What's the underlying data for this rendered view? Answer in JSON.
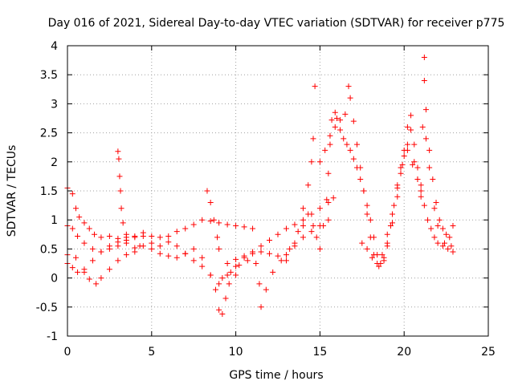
{
  "chart_data": {
    "type": "scatter",
    "title": "Day 016 of 2021, Sidereal Day-to-day VTEC variation (SDTVAR) for receiver p775",
    "xlabel": "GPS time / hours",
    "ylabel": "SDTVAR / TECUs",
    "xlim": [
      0,
      25
    ],
    "ylim": [
      -1,
      4
    ],
    "xticks": [
      0,
      5,
      10,
      15,
      20,
      25
    ],
    "yticks": [
      -1,
      -0.5,
      0,
      0.5,
      1,
      1.5,
      2,
      2.5,
      3,
      3.5,
      4
    ],
    "ytick_labels": [
      "-1",
      "-0.5",
      "0",
      "0.5",
      "1",
      "1.5",
      "2",
      "2.5",
      "3",
      "3.5",
      "4"
    ],
    "grid": true,
    "marker": "+",
    "series": [
      {
        "name": "p775",
        "color": "#ff0000",
        "tracks": [
          [
            [
              0.0,
              1.55
            ],
            [
              0.3,
              1.45
            ],
            [
              0.5,
              1.2
            ],
            [
              0.7,
              1.05
            ],
            [
              1.0,
              0.95
            ],
            [
              1.3,
              0.85
            ],
            [
              1.6,
              0.75
            ],
            [
              2.0,
              0.7
            ],
            [
              2.5,
              0.72
            ],
            [
              3.0,
              0.68
            ],
            [
              3.5,
              0.7
            ],
            [
              4.0,
              0.72
            ],
            [
              4.5,
              0.78
            ],
            [
              5.0,
              0.6
            ],
            [
              5.5,
              0.55
            ],
            [
              6.0,
              0.72
            ],
            [
              6.5,
              0.8
            ],
            [
              7.0,
              0.85
            ],
            [
              7.5,
              0.92
            ],
            [
              8.0,
              1.0
            ],
            [
              8.5,
              0.98
            ],
            [
              9.0,
              0.95
            ],
            [
              9.5,
              0.92
            ],
            [
              10.0,
              0.9
            ],
            [
              10.5,
              0.88
            ],
            [
              11.0,
              0.85
            ]
          ],
          [
            [
              0.0,
              0.9
            ],
            [
              0.3,
              0.85
            ],
            [
              0.6,
              0.72
            ],
            [
              1.0,
              0.6
            ],
            [
              1.5,
              0.5
            ],
            [
              2.0,
              0.45
            ],
            [
              2.5,
              0.5
            ],
            [
              3.0,
              0.55
            ],
            [
              3.5,
              0.6
            ],
            [
              4.0,
              0.52
            ],
            [
              4.5,
              0.55
            ],
            [
              5.0,
              0.5
            ],
            [
              5.5,
              0.42
            ],
            [
              6.0,
              0.38
            ],
            [
              6.5,
              0.35
            ],
            [
              7.0,
              0.42
            ],
            [
              7.5,
              0.5
            ],
            [
              8.0,
              0.35
            ]
          ],
          [
            [
              0.0,
              0.25
            ],
            [
              0.3,
              0.18
            ],
            [
              0.6,
              0.1
            ],
            [
              1.0,
              0.15
            ],
            [
              1.5,
              0.3
            ],
            [
              2.0,
              0.45
            ],
            [
              2.5,
              0.55
            ],
            [
              3.0,
              0.62
            ],
            [
              3.5,
              0.65
            ],
            [
              4.0,
              0.7
            ],
            [
              4.5,
              0.72
            ],
            [
              5.0,
              0.72
            ],
            [
              5.5,
              0.7
            ],
            [
              6.0,
              0.62
            ],
            [
              6.5,
              0.55
            ],
            [
              7.0,
              0.42
            ],
            [
              7.5,
              0.3
            ],
            [
              8.0,
              0.2
            ],
            [
              8.5,
              0.05
            ],
            [
              8.8,
              -0.2
            ],
            [
              9.0,
              -0.55
            ],
            [
              9.2,
              -0.62
            ],
            [
              9.4,
              -0.35
            ],
            [
              9.6,
              -0.1
            ],
            [
              10.0,
              0.05
            ]
          ],
          [
            [
              0.0,
              0.4
            ],
            [
              0.5,
              0.35
            ],
            [
              1.0,
              0.1
            ],
            [
              1.3,
              -0.02
            ],
            [
              1.7,
              -0.1
            ],
            [
              2.0,
              0.0
            ],
            [
              2.5,
              0.15
            ],
            [
              3.0,
              0.3
            ],
            [
              3.5,
              0.4
            ],
            [
              4.0,
              0.45
            ],
            [
              4.3,
              0.55
            ]
          ],
          [
            [
              3.0,
              2.18
            ],
            [
              3.05,
              2.05
            ],
            [
              3.1,
              1.75
            ],
            [
              3.15,
              1.5
            ],
            [
              3.2,
              1.2
            ],
            [
              3.3,
              0.95
            ],
            [
              3.5,
              0.75
            ]
          ],
          [
            [
              8.3,
              1.5
            ],
            [
              8.5,
              1.3
            ],
            [
              8.7,
              1.0
            ],
            [
              8.9,
              0.7
            ],
            [
              9.0,
              0.5
            ]
          ],
          [
            [
              8.5,
              0.05
            ],
            [
              9.0,
              -0.1
            ],
            [
              9.5,
              0.05
            ],
            [
              10.0,
              0.2
            ],
            [
              10.5,
              0.35
            ],
            [
              11.0,
              0.45
            ],
            [
              11.5,
              0.55
            ],
            [
              12.0,
              0.65
            ],
            [
              12.5,
              0.75
            ],
            [
              13.0,
              0.85
            ],
            [
              13.5,
              0.92
            ],
            [
              14.0,
              1.0
            ],
            [
              14.5,
              1.1
            ],
            [
              15.0,
              1.2
            ],
            [
              15.5,
              1.3
            ],
            [
              15.8,
              1.38
            ]
          ],
          [
            [
              9.5,
              0.25
            ],
            [
              10.0,
              0.32
            ],
            [
              10.5,
              0.38
            ],
            [
              11.0,
              0.42
            ],
            [
              11.5,
              0.45
            ],
            [
              12.0,
              0.42
            ],
            [
              12.5,
              0.38
            ],
            [
              13.0,
              0.4
            ],
            [
              13.5,
              0.55
            ],
            [
              14.0,
              0.7
            ],
            [
              14.5,
              0.8
            ],
            [
              15.0,
              0.9
            ],
            [
              15.5,
              1.0
            ]
          ],
          [
            [
              9.2,
              0.0
            ],
            [
              9.7,
              0.1
            ],
            [
              10.2,
              0.22
            ],
            [
              10.7,
              0.3
            ],
            [
              11.2,
              0.25
            ],
            [
              11.4,
              -0.1
            ],
            [
              11.5,
              -0.5
            ],
            [
              11.8,
              -0.2
            ],
            [
              12.2,
              0.1
            ],
            [
              12.7,
              0.3
            ],
            [
              13.2,
              0.5
            ],
            [
              13.7,
              0.8
            ],
            [
              14.0,
              1.2
            ],
            [
              14.3,
              1.6
            ],
            [
              14.5,
              2.0
            ],
            [
              14.6,
              2.4
            ],
            [
              14.7,
              3.3
            ]
          ],
          [
            [
              13.0,
              0.3
            ],
            [
              13.5,
              0.6
            ],
            [
              14.0,
              0.9
            ],
            [
              14.3,
              1.1
            ],
            [
              14.6,
              0.9
            ],
            [
              14.8,
              0.7
            ],
            [
              15.0,
              0.5
            ],
            [
              15.2,
              0.9
            ],
            [
              15.4,
              1.35
            ],
            [
              15.5,
              1.8
            ],
            [
              15.6,
              2.3
            ],
            [
              15.7,
              2.72
            ],
            [
              15.9,
              2.85
            ],
            [
              16.0,
              2.75
            ],
            [
              16.2,
              2.55
            ],
            [
              16.4,
              2.4
            ],
            [
              16.6,
              2.3
            ],
            [
              16.8,
              2.2
            ],
            [
              17.0,
              2.05
            ],
            [
              17.2,
              1.9
            ],
            [
              17.4,
              1.7
            ],
            [
              17.6,
              1.5
            ],
            [
              17.8,
              1.25
            ],
            [
              18.0,
              1.0
            ],
            [
              18.2,
              0.7
            ],
            [
              18.4,
              0.4
            ],
            [
              18.6,
              0.25
            ],
            [
              18.8,
              0.35
            ],
            [
              19.0,
              0.6
            ],
            [
              19.2,
              0.9
            ],
            [
              19.4,
              1.25
            ],
            [
              19.6,
              1.6
            ],
            [
              19.8,
              1.9
            ],
            [
              20.0,
              2.1
            ],
            [
              20.2,
              2.3
            ],
            [
              20.4,
              2.55
            ],
            [
              20.6,
              2.0
            ],
            [
              20.8,
              1.7
            ],
            [
              21.0,
              1.5
            ],
            [
              21.2,
              1.25
            ],
            [
              21.4,
              1.0
            ],
            [
              21.6,
              0.85
            ],
            [
              21.8,
              0.7
            ],
            [
              22.0,
              0.6
            ],
            [
              22.3,
              0.55
            ],
            [
              22.6,
              0.5
            ],
            [
              22.9,
              0.45
            ]
          ],
          [
            [
              15.0,
              2.0
            ],
            [
              15.3,
              2.2
            ],
            [
              15.6,
              2.45
            ],
            [
              15.9,
              2.6
            ],
            [
              16.2,
              2.72
            ],
            [
              16.5,
              2.82
            ],
            [
              16.7,
              3.3
            ],
            [
              16.8,
              3.1
            ],
            [
              17.0,
              2.7
            ],
            [
              17.2,
              2.3
            ],
            [
              17.4,
              1.9
            ],
            [
              17.6,
              1.5
            ],
            [
              17.8,
              1.1
            ],
            [
              18.0,
              0.7
            ],
            [
              18.2,
              0.4
            ],
            [
              18.5,
              0.2
            ],
            [
              18.8,
              0.3
            ],
            [
              19.0,
              0.55
            ],
            [
              19.3,
              0.95
            ],
            [
              19.6,
              1.4
            ],
            [
              19.8,
              1.8
            ],
            [
              20.0,
              2.2
            ],
            [
              20.2,
              2.6
            ],
            [
              20.4,
              2.8
            ],
            [
              20.6,
              2.3
            ],
            [
              20.8,
              1.9
            ],
            [
              21.0,
              1.6
            ],
            [
              21.1,
              2.6
            ],
            [
              21.2,
              3.4
            ],
            [
              21.3,
              2.9
            ],
            [
              21.5,
              2.2
            ],
            [
              21.7,
              1.7
            ],
            [
              21.9,
              1.3
            ],
            [
              22.1,
              1.0
            ],
            [
              22.3,
              0.85
            ],
            [
              22.5,
              0.75
            ],
            [
              22.7,
              0.7
            ],
            [
              22.9,
              0.9
            ]
          ],
          [
            [
              17.5,
              0.6
            ],
            [
              17.8,
              0.5
            ],
            [
              18.1,
              0.35
            ],
            [
              18.4,
              0.25
            ],
            [
              18.7,
              0.4
            ],
            [
              19.0,
              0.75
            ],
            [
              19.3,
              1.1
            ],
            [
              19.6,
              1.55
            ],
            [
              19.9,
              1.95
            ],
            [
              20.2,
              2.2
            ],
            [
              20.5,
              1.95
            ],
            [
              20.8,
              1.7
            ],
            [
              21.0,
              1.4
            ],
            [
              21.2,
              3.8
            ],
            [
              21.3,
              2.4
            ],
            [
              21.5,
              1.9
            ],
            [
              21.8,
              1.2
            ],
            [
              22.0,
              0.9
            ],
            [
              22.4,
              0.6
            ],
            [
              22.8,
              0.55
            ]
          ]
        ]
      }
    ]
  }
}
